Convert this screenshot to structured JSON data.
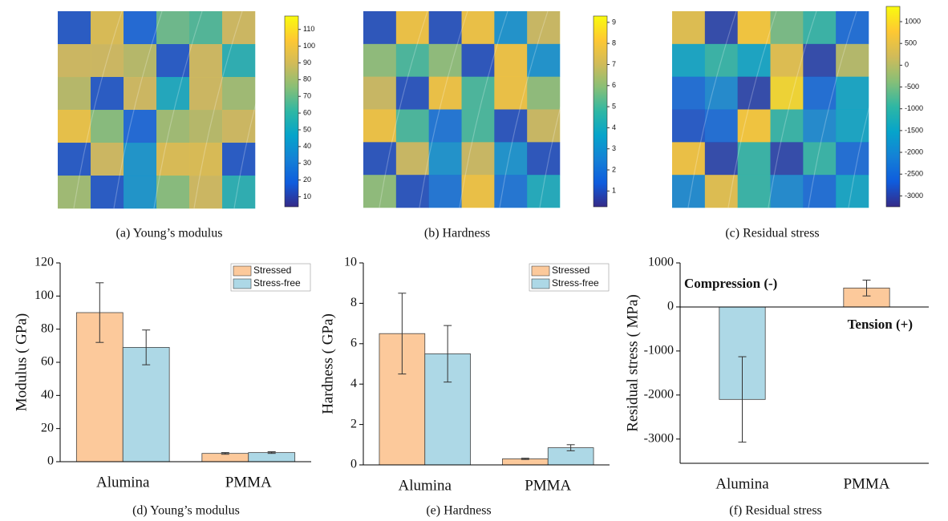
{
  "chart_data": [
    {
      "type": "heatmap",
      "caption": "(a) Young’s modulus",
      "values": [
        [
          15,
          95,
          20,
          70,
          65,
          90
        ],
        [
          90,
          90,
          85,
          15,
          90,
          55
        ],
        [
          85,
          15,
          90,
          50,
          90,
          80
        ],
        [
          100,
          75,
          20,
          80,
          85,
          90
        ],
        [
          15,
          90,
          40,
          95,
          95,
          15
        ],
        [
          80,
          15,
          40,
          75,
          90,
          55
        ]
      ],
      "clim": [
        4,
        118
      ],
      "cticks": [
        10,
        20,
        30,
        40,
        50,
        60,
        70,
        80,
        90,
        100,
        110
      ],
      "colormap": [
        "#352a87",
        "#0f5cdd",
        "#1481d6",
        "#06a4ca",
        "#2eb7a4",
        "#87bf77",
        "#d1bb59",
        "#fec832",
        "#f9fb0e"
      ]
    },
    {
      "type": "heatmap",
      "caption": "(b) Hardness",
      "values": [
        [
          1,
          8,
          1,
          8,
          3,
          7
        ],
        [
          6,
          5,
          6,
          1,
          8,
          3
        ],
        [
          7,
          1,
          8,
          5,
          8,
          6
        ],
        [
          8,
          5,
          2,
          5,
          1,
          7
        ],
        [
          1,
          7,
          3,
          7,
          3,
          1
        ],
        [
          6,
          1,
          2,
          8,
          2,
          4
        ]
      ],
      "clim": [
        0.25,
        9.3
      ],
      "cticks": [
        1,
        2,
        3,
        4,
        5,
        6,
        7,
        8,
        9
      ],
      "colormap": [
        "#352a87",
        "#0f5cdd",
        "#1481d6",
        "#06a4ca",
        "#2eb7a4",
        "#87bf77",
        "#d1bb59",
        "#fec832",
        "#f9fb0e"
      ]
    },
    {
      "type": "heatmap",
      "caption": "(c) Residual stress",
      "values": [
        [
          500,
          -3000,
          800,
          -500,
          -1000,
          -2500
        ],
        [
          -1500,
          -1000,
          -1500,
          500,
          -3000,
          0
        ],
        [
          -2500,
          -2000,
          -3000,
          1000,
          -2500,
          -1500
        ],
        [
          -2800,
          -2500,
          800,
          -1000,
          -2000,
          -1500
        ],
        [
          700,
          -3000,
          -1000,
          -3000,
          -1000,
          -2500
        ],
        [
          -2000,
          500,
          -1000,
          -2000,
          -2500,
          -1500
        ]
      ],
      "clim": [
        -3250,
        1350
      ],
      "cticks": [
        -3000,
        -2500,
        -2000,
        -1500,
        -1000,
        -500,
        0,
        500,
        1000
      ],
      "colormap": [
        "#352a87",
        "#0f5cdd",
        "#1481d6",
        "#06a4ca",
        "#2eb7a4",
        "#87bf77",
        "#d1bb59",
        "#fec832",
        "#f9fb0e"
      ]
    },
    {
      "type": "bar",
      "caption": "(d) Young’s modulus",
      "y_label": "Modulus ( GPa)",
      "categories": [
        "Alumina",
        "PMMA"
      ],
      "series": [
        {
          "name": "Stressed",
          "color": "#fcc99b",
          "values": [
            90,
            5
          ],
          "errors": [
            18,
            0.5
          ]
        },
        {
          "name": "Stress-free",
          "color": "#add8e6",
          "values": [
            69,
            5.5
          ],
          "errors": [
            10.5,
            0.5
          ]
        }
      ],
      "ylim": [
        0,
        120
      ],
      "yticks": [
        0,
        20,
        40,
        60,
        80,
        100,
        120
      ],
      "legend": "upper right"
    },
    {
      "type": "bar",
      "caption": "(e) Hardness",
      "y_label": "Hardness ( GPa)",
      "categories": [
        "Alumina",
        "PMMA"
      ],
      "series": [
        {
          "name": "Stressed",
          "color": "#fcc99b",
          "values": [
            6.5,
            0.3
          ],
          "errors": [
            2,
            0.03
          ]
        },
        {
          "name": "Stress-free",
          "color": "#add8e6",
          "values": [
            5.5,
            0.85
          ],
          "errors": [
            1.4,
            0.15
          ]
        }
      ],
      "ylim": [
        0,
        10
      ],
      "yticks": [
        0,
        2,
        4,
        6,
        8,
        10
      ],
      "legend": "upper right"
    },
    {
      "type": "bar",
      "caption": "(f) Residual stress",
      "y_label": "Residual stress ( MPa)",
      "categories": [
        "Alumina",
        "PMMA"
      ],
      "series": [
        {
          "color": "#fcc99b",
          "values": [
            null,
            430
          ],
          "errors": [
            null,
            180
          ]
        },
        {
          "color": "#add8e6",
          "values": [
            -2100,
            null
          ],
          "errors": [
            970,
            null
          ]
        }
      ],
      "ylim": [
        -3550,
        1000
      ],
      "yticks": [
        -3000,
        -2000,
        -1000,
        0,
        1000
      ],
      "annotations": [
        {
          "text": "Compression (-)",
          "color": "#1f3a6e"
        },
        {
          "text": "Tension (+)",
          "color": "#8b3a0f"
        }
      ]
    }
  ]
}
